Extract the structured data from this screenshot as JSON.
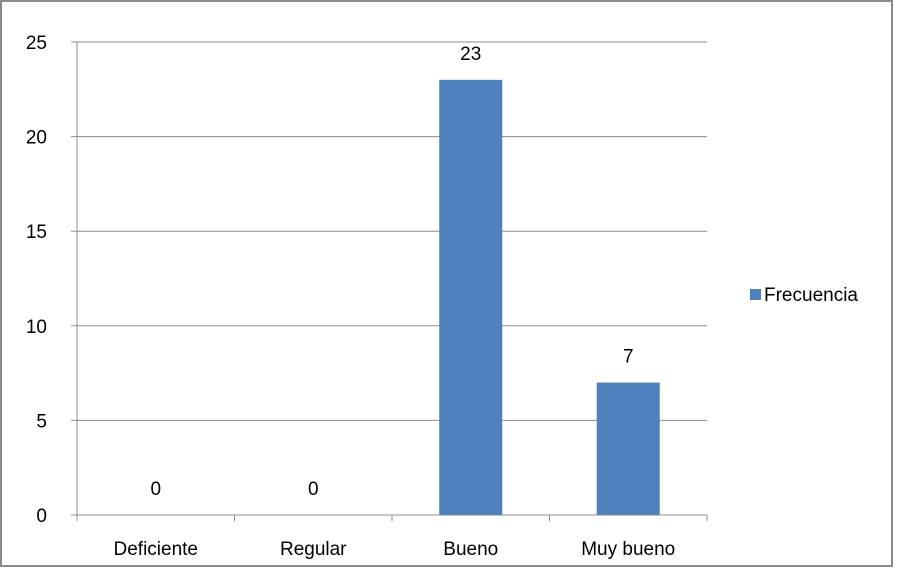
{
  "chart_data": {
    "type": "bar",
    "categories": [
      "Deficiente",
      "Regular",
      "Bueno",
      "Muy bueno"
    ],
    "series": [
      {
        "name": "Frecuencia",
        "values": [
          0,
          0,
          23,
          7
        ],
        "color": "#4f81bd"
      }
    ],
    "ylim": [
      0,
      25
    ],
    "yticks": [
      0,
      5,
      10,
      15,
      20,
      25
    ],
    "data_labels": [
      "0",
      "0",
      "23",
      "7"
    ],
    "grid": true,
    "legend": "right"
  }
}
